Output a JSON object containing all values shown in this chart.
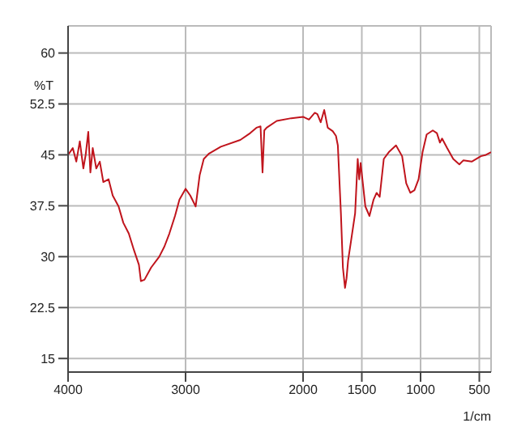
{
  "chart_data": {
    "type": "line",
    "xlabel": "1/cm",
    "ylabel": "%T",
    "x": [
      4000,
      3960,
      3930,
      3900,
      3870,
      3850,
      3828,
      3810,
      3790,
      3760,
      3730,
      3700,
      3655,
      3620,
      3570,
      3530,
      3483,
      3440,
      3397,
      3380,
      3350,
      3293,
      3224,
      3180,
      3138,
      3090,
      3052,
      3000,
      2960,
      2914,
      2880,
      2845,
      2800,
      2700,
      2534,
      2450,
      2397,
      2362,
      2345,
      2330,
      2310,
      2224,
      2100,
      2000,
      1950,
      1900,
      1878,
      1850,
      1820,
      1790,
      1748,
      1720,
      1704,
      1678,
      1661,
      1643,
      1630,
      1617,
      1591,
      1557,
      1535,
      1522,
      1510,
      1470,
      1435,
      1400,
      1374,
      1348,
      1313,
      1270,
      1209,
      1157,
      1122,
      1087,
      1052,
      1017,
      983,
      948,
      896,
      861,
      835,
      817,
      774,
      722,
      670,
      635,
      565,
      487,
      443,
      400
    ],
    "series": [
      {
        "color": "#c0141c",
        "values": [
          45,
          46,
          44,
          47,
          43,
          45,
          48.4,
          42.4,
          46,
          43,
          44,
          41,
          41.4,
          39,
          37.4,
          35,
          33.4,
          31,
          28.8,
          26.4,
          26.6,
          28.4,
          30,
          31.5,
          33.4,
          36,
          38.4,
          40,
          39,
          37.4,
          42,
          44.4,
          45.2,
          46.2,
          47.2,
          48.2,
          49,
          49.2,
          42.4,
          48.6,
          49,
          50,
          50.4,
          50.6,
          50.2,
          51.2,
          51,
          49.8,
          51.6,
          49,
          48.5,
          47.8,
          46.4,
          36.4,
          28.4,
          25.4,
          26.8,
          29.4,
          32.4,
          36.4,
          44.4,
          41.4,
          43.8,
          37.4,
          36,
          38.4,
          39.4,
          38.8,
          44.4,
          45.4,
          46.4,
          44.8,
          40.8,
          39.4,
          39.8,
          41.4,
          45.4,
          48,
          48.6,
          48.2,
          46.8,
          47.4,
          46,
          44.4,
          43.6,
          44.2,
          44,
          44.8,
          45,
          45.4
        ]
      }
    ],
    "xlim": [
      4000,
      400
    ],
    "xticks": [
      4000,
      3000,
      2000,
      1500,
      1000,
      500
    ],
    "ylim": [
      13,
      64
    ],
    "yticks": [
      15,
      22.5,
      30,
      37.5,
      45,
      52.5,
      60
    ],
    "grid": true,
    "marker": "none",
    "line_style": "solid"
  }
}
